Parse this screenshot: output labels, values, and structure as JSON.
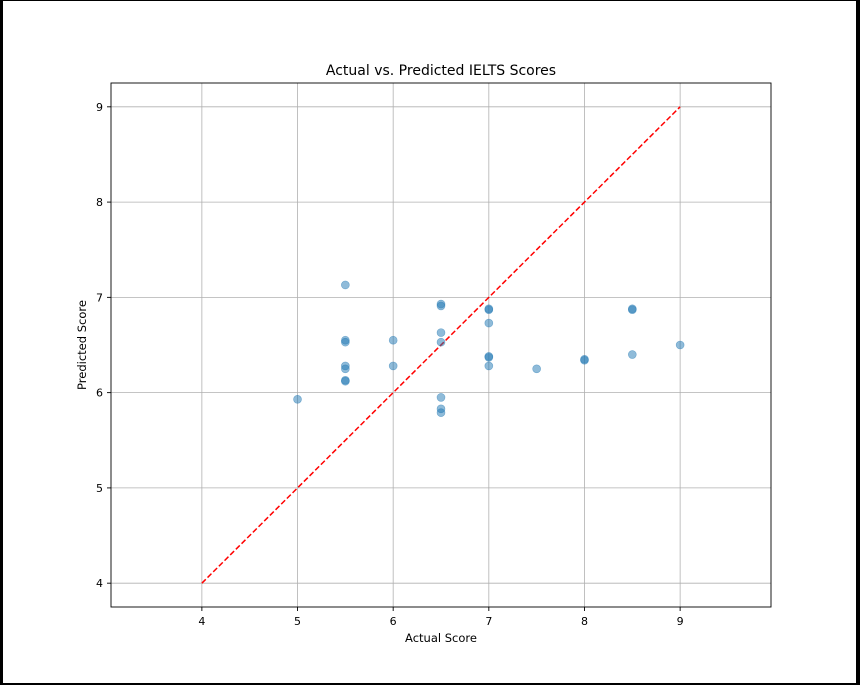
{
  "chart_data": {
    "type": "scatter",
    "title": "Actual vs. Predicted IELTS Scores",
    "xlabel": "Actual Score",
    "ylabel": "Predicted Score",
    "xlim": [
      3.05,
      9.95
    ],
    "ylim": [
      3.75,
      9.25
    ],
    "xticks": [
      4,
      5,
      6,
      7,
      8,
      9
    ],
    "yticks": [
      4,
      5,
      6,
      7,
      8,
      9
    ],
    "grid": true,
    "colors": {
      "points": "#1f77b4",
      "reference_line": "#ff0000",
      "grid": "#b0b0b0",
      "axes": "#000000"
    },
    "series": [
      {
        "values": [
          {
            "x": 5.0,
            "y": 5.93
          },
          {
            "x": 5.5,
            "y": 7.13
          },
          {
            "x": 5.5,
            "y": 6.55
          },
          {
            "x": 5.5,
            "y": 6.53
          },
          {
            "x": 5.5,
            "y": 6.28
          },
          {
            "x": 5.5,
            "y": 6.25
          },
          {
            "x": 5.5,
            "y": 6.13
          },
          {
            "x": 5.5,
            "y": 6.12
          },
          {
            "x": 6.0,
            "y": 6.55
          },
          {
            "x": 6.0,
            "y": 6.28
          },
          {
            "x": 6.5,
            "y": 6.93
          },
          {
            "x": 6.5,
            "y": 6.91
          },
          {
            "x": 6.5,
            "y": 6.63
          },
          {
            "x": 6.5,
            "y": 6.53
          },
          {
            "x": 6.5,
            "y": 5.95
          },
          {
            "x": 6.5,
            "y": 5.83
          },
          {
            "x": 6.5,
            "y": 5.79
          },
          {
            "x": 7.0,
            "y": 6.88
          },
          {
            "x": 7.0,
            "y": 6.87
          },
          {
            "x": 7.0,
            "y": 6.73
          },
          {
            "x": 7.0,
            "y": 6.38
          },
          {
            "x": 7.0,
            "y": 6.37
          },
          {
            "x": 7.0,
            "y": 6.28
          },
          {
            "x": 7.5,
            "y": 6.25
          },
          {
            "x": 8.0,
            "y": 6.35
          },
          {
            "x": 8.0,
            "y": 6.34
          },
          {
            "x": 8.5,
            "y": 6.88
          },
          {
            "x": 8.5,
            "y": 6.87
          },
          {
            "x": 8.5,
            "y": 6.4
          },
          {
            "x": 9.0,
            "y": 6.5
          }
        ]
      }
    ],
    "reference_line": {
      "style": "dashed",
      "x": [
        4,
        9
      ],
      "y": [
        4,
        9
      ]
    }
  }
}
